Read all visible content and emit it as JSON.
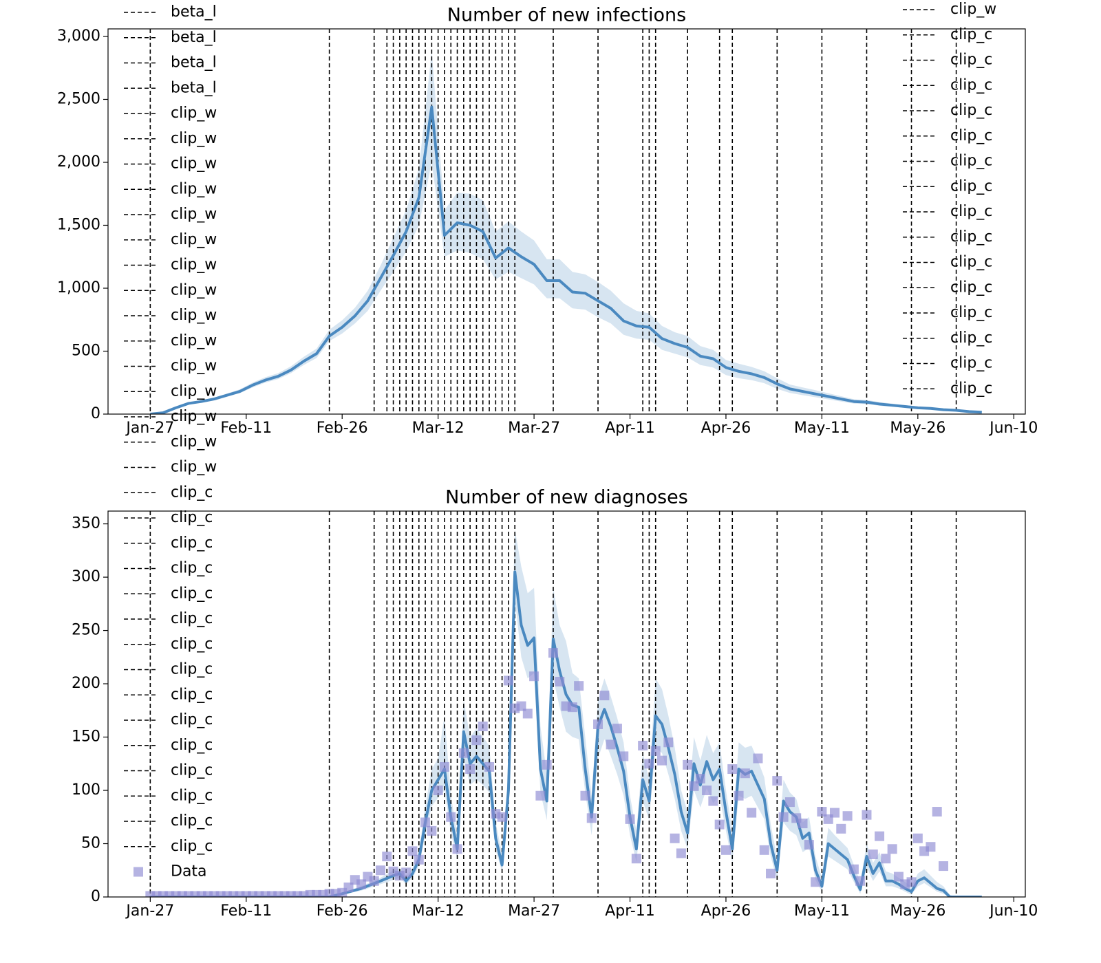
{
  "chart_data": [
    {
      "type": "line",
      "title": "Number of new infections",
      "xlim": [
        -6.6,
        136.8
      ],
      "ylim": [
        0,
        3060
      ],
      "xticks": [
        {
          "value": 0,
          "label": "Jan-27"
        },
        {
          "value": 15,
          "label": "Feb-11"
        },
        {
          "value": 30,
          "label": "Feb-26"
        },
        {
          "value": 45,
          "label": "Mar-12"
        },
        {
          "value": 60,
          "label": "Mar-27"
        },
        {
          "value": 75,
          "label": "Apr-11"
        },
        {
          "value": 90,
          "label": "Apr-26"
        },
        {
          "value": 105,
          "label": "May-11"
        },
        {
          "value": 120,
          "label": "May-26"
        },
        {
          "value": 135,
          "label": "Jun-10"
        }
      ],
      "yticks": [
        0,
        500,
        {
          "value": 1000,
          "label": "1,000"
        },
        {
          "value": 1500,
          "label": "1,500"
        },
        {
          "value": 2000,
          "label": "2,000"
        },
        {
          "value": 2500,
          "label": "2,500"
        },
        {
          "value": 3000,
          "label": "3,000"
        }
      ],
      "grid": false,
      "vlines": [
        0,
        28,
        35,
        37,
        38,
        39,
        40,
        41,
        42,
        43,
        44,
        45,
        46,
        47,
        48,
        49,
        50,
        51,
        52,
        53,
        54,
        55,
        56,
        57,
        63,
        70,
        77,
        78,
        79,
        84,
        89,
        91,
        98,
        105,
        112,
        119,
        126
      ],
      "legend": {
        "loc": "upper right",
        "entries": [
          "clip_w",
          "clip_c",
          "clip_c",
          "clip_c",
          "clip_c",
          "clip_c",
          "clip_c",
          "clip_c",
          "clip_c",
          "clip_c",
          "clip_c",
          "clip_c",
          "clip_c",
          "clip_c",
          "clip_c",
          "clip_c"
        ]
      },
      "series": [
        {
          "color": "#4a89c0",
          "band_color": "#b7d0e6",
          "x": [
            0,
            2,
            4,
            6,
            8,
            10,
            12,
            14,
            16,
            18,
            20,
            22,
            24,
            26,
            28,
            30,
            32,
            34,
            36,
            38,
            40,
            42,
            44,
            46,
            48,
            50,
            52,
            54,
            56,
            58,
            60,
            62,
            64,
            66,
            68,
            70,
            72,
            74,
            76,
            78,
            80,
            82,
            84,
            86,
            88,
            90,
            92,
            94,
            96,
            98,
            100,
            102,
            104,
            106,
            108,
            110,
            112,
            114,
            116,
            118,
            120,
            122,
            124,
            126,
            128,
            130
          ],
          "values": [
            0,
            10,
            50,
            85,
            100,
            120,
            150,
            180,
            230,
            270,
            300,
            350,
            420,
            480,
            620,
            690,
            780,
            900,
            1080,
            1260,
            1450,
            1720,
            2440,
            1420,
            1520,
            1500,
            1450,
            1240,
            1320,
            1250,
            1190,
            1060,
            1060,
            970,
            960,
            900,
            840,
            740,
            700,
            690,
            600,
            560,
            530,
            460,
            440,
            370,
            340,
            320,
            290,
            240,
            200,
            180,
            160,
            140,
            120,
            100,
            95,
            80,
            70,
            60,
            50,
            45,
            35,
            30,
            20,
            15
          ],
          "lower": [
            0,
            8,
            45,
            78,
            92,
            110,
            138,
            166,
            212,
            250,
            278,
            325,
            390,
            445,
            580,
            640,
            720,
            820,
            980,
            1130,
            1290,
            1500,
            2000,
            1250,
            1300,
            1280,
            1230,
            1070,
            1130,
            1080,
            1030,
            920,
            920,
            840,
            830,
            770,
            720,
            630,
            600,
            590,
            510,
            480,
            450,
            390,
            370,
            310,
            285,
            270,
            245,
            200,
            168,
            150,
            134,
            117,
            100,
            83,
            79,
            66,
            58,
            50,
            41,
            37,
            29,
            24,
            16,
            12
          ],
          "upper": [
            0,
            12,
            56,
            93,
            110,
            132,
            163,
            196,
            250,
            293,
            325,
            380,
            455,
            520,
            670,
            745,
            845,
            980,
            1180,
            1400,
            1620,
            1950,
            2880,
            1620,
            1760,
            1750,
            1700,
            1450,
            1530,
            1450,
            1380,
            1230,
            1230,
            1130,
            1110,
            1050,
            980,
            880,
            820,
            800,
            700,
            650,
            620,
            540,
            510,
            430,
            400,
            375,
            340,
            285,
            235,
            212,
            190,
            165,
            142,
            118,
            112,
            95,
            83,
            71,
            60,
            54,
            42,
            36,
            24,
            18
          ]
        }
      ]
    },
    {
      "type": "line",
      "title": "Number of new diagnoses",
      "xlim": [
        -6.6,
        136.8
      ],
      "ylim": [
        0,
        362
      ],
      "xticks": [
        {
          "value": 0,
          "label": "Jan-27"
        },
        {
          "value": 15,
          "label": "Feb-11"
        },
        {
          "value": 30,
          "label": "Feb-26"
        },
        {
          "value": 45,
          "label": "Mar-12"
        },
        {
          "value": 60,
          "label": "Mar-27"
        },
        {
          "value": 75,
          "label": "Apr-11"
        },
        {
          "value": 90,
          "label": "Apr-26"
        },
        {
          "value": 105,
          "label": "May-11"
        },
        {
          "value": 120,
          "label": "May-26"
        },
        {
          "value": 135,
          "label": "Jun-10"
        }
      ],
      "yticks": [
        0,
        50,
        100,
        150,
        200,
        250,
        300,
        350
      ],
      "grid": false,
      "vlines": [
        0,
        28,
        35,
        37,
        38,
        39,
        40,
        41,
        42,
        43,
        44,
        45,
        46,
        47,
        48,
        49,
        50,
        51,
        52,
        53,
        54,
        55,
        56,
        57,
        63,
        70,
        77,
        78,
        79,
        84,
        89,
        91,
        98,
        105,
        112,
        119,
        126
      ],
      "legend": {
        "loc": "upper left",
        "entries": [
          "beta_l",
          "beta_l",
          "beta_l",
          "beta_l",
          "clip_w",
          "clip_w",
          "clip_w",
          "clip_w",
          "clip_w",
          "clip_w",
          "clip_w",
          "clip_w",
          "clip_w",
          "clip_w",
          "clip_w",
          "clip_w",
          "clip_w",
          "clip_w",
          "clip_w",
          "clip_c",
          "clip_c",
          "clip_c",
          "clip_c",
          "clip_c",
          "clip_c",
          "clip_c",
          "clip_c",
          "clip_c",
          "clip_c",
          "clip_c",
          "clip_c",
          "clip_c",
          "clip_c",
          "clip_c"
        ]
      },
      "series": [
        {
          "color": "#4a89c0",
          "band_color": "#b7d0e6",
          "x": [
            0,
            28,
            30,
            33,
            36,
            38,
            39,
            40,
            41,
            42,
            43,
            44,
            45,
            46,
            47,
            48,
            49,
            50,
            51,
            52,
            53,
            54,
            55,
            56,
            57,
            58,
            59,
            60,
            61,
            62,
            63,
            64,
            65,
            66,
            67,
            68,
            69,
            70,
            71,
            72,
            73,
            74,
            75,
            76,
            77,
            78,
            79,
            80,
            81,
            82,
            83,
            84,
            85,
            86,
            87,
            88,
            89,
            90,
            91,
            92,
            93,
            94,
            95,
            96,
            97,
            98,
            99,
            100,
            101,
            102,
            103,
            104,
            105,
            106,
            107,
            108,
            109,
            110,
            111,
            112,
            113,
            114,
            115,
            116,
            117,
            118,
            119,
            120,
            121,
            122,
            123,
            124,
            125,
            126,
            130
          ],
          "values": [
            0,
            0,
            3,
            8,
            15,
            20,
            22,
            15,
            22,
            35,
            70,
            100,
            110,
            120,
            75,
            45,
            155,
            125,
            132,
            125,
            118,
            55,
            30,
            100,
            305,
            255,
            236,
            243,
            120,
            90,
            242,
            212,
            190,
            180,
            178,
            120,
            75,
            160,
            176,
            160,
            140,
            118,
            75,
            45,
            110,
            90,
            170,
            162,
            140,
            115,
            80,
            60,
            125,
            105,
            127,
            110,
            120,
            80,
            45,
            120,
            115,
            118,
            105,
            92,
            50,
            25,
            90,
            80,
            75,
            55,
            60,
            25,
            10,
            50,
            45,
            40,
            35,
            20,
            7,
            38,
            22,
            32,
            15,
            15,
            12,
            8,
            5,
            15,
            18,
            13,
            8,
            6,
            0,
            0,
            0
          ],
          "lower": [
            0,
            0,
            2,
            6,
            12,
            16,
            18,
            12,
            18,
            29,
            58,
            85,
            93,
            100,
            60,
            36,
            130,
            105,
            110,
            105,
            98,
            44,
            24,
            85,
            280,
            225,
            205,
            210,
            98,
            72,
            205,
            178,
            155,
            150,
            148,
            98,
            58,
            130,
            148,
            132,
            115,
            95,
            58,
            33,
            90,
            72,
            140,
            135,
            115,
            92,
            62,
            45,
            100,
            84,
            102,
            88,
            95,
            62,
            32,
            95,
            92,
            95,
            84,
            73,
            38,
            16,
            70,
            62,
            58,
            42,
            46,
            16,
            5,
            38,
            34,
            30,
            26,
            14,
            3,
            28,
            15,
            24,
            10,
            10,
            8,
            5,
            2,
            10,
            13,
            9,
            5,
            3,
            0,
            0,
            0
          ],
          "upper": [
            0,
            0,
            4,
            10,
            18,
            25,
            27,
            19,
            27,
            43,
            85,
            120,
            130,
            170,
            95,
            58,
            185,
            150,
            158,
            150,
            142,
            70,
            40,
            120,
            345,
            310,
            285,
            290,
            160,
            115,
            290,
            255,
            240,
            210,
            205,
            150,
            95,
            185,
            205,
            188,
            168,
            145,
            95,
            62,
            135,
            110,
            205,
            195,
            170,
            140,
            100,
            80,
            150,
            128,
            152,
            135,
            145,
            100,
            62,
            145,
            140,
            142,
            128,
            112,
            68,
            36,
            110,
            98,
            92,
            70,
            75,
            38,
            18,
            65,
            58,
            52,
            46,
            30,
            14,
            50,
            32,
            42,
            24,
            22,
            18,
            14,
            10,
            22,
            26,
            20,
            14,
            10,
            2,
            0,
            0
          ]
        },
        {
          "name": "Data",
          "type": "scatter",
          "color": "#8d8bd3",
          "x": [
            0,
            1,
            2,
            3,
            4,
            5,
            6,
            7,
            8,
            9,
            10,
            11,
            12,
            13,
            14,
            15,
            16,
            17,
            18,
            19,
            20,
            21,
            22,
            23,
            24,
            25,
            26,
            27,
            28,
            29,
            30,
            31,
            32,
            33,
            34,
            35,
            36,
            37,
            38,
            39,
            40,
            41,
            42,
            43,
            44,
            45,
            46,
            47,
            48,
            49,
            50,
            51,
            52,
            53,
            54,
            55,
            56,
            57,
            58,
            59,
            60,
            61,
            62,
            63,
            64,
            65,
            66,
            67,
            68,
            69,
            70,
            71,
            72,
            73,
            74,
            75,
            76,
            77,
            78,
            79,
            80,
            81,
            82,
            83,
            84,
            85,
            86,
            87,
            88,
            89,
            90,
            91,
            92,
            93,
            94,
            95,
            96,
            97,
            98,
            99,
            100,
            101,
            102,
            103,
            104,
            105,
            106,
            107,
            108,
            109,
            110,
            111,
            112,
            113,
            114,
            115,
            116,
            117,
            118,
            119,
            120,
            121,
            122,
            123,
            124
          ],
          "values": [
            1,
            1,
            1,
            1,
            1,
            1,
            1,
            1,
            1,
            1,
            1,
            1,
            1,
            1,
            1,
            1,
            1,
            1,
            1,
            1,
            1,
            1,
            1,
            1,
            1,
            2,
            2,
            2,
            3,
            3,
            4,
            9,
            16,
            12,
            19,
            15,
            25,
            38,
            24,
            20,
            23,
            43,
            35,
            70,
            62,
            100,
            122,
            75,
            45,
            135,
            120,
            147,
            160,
            122,
            78,
            75,
            203,
            177,
            179,
            172,
            207,
            95,
            124,
            229,
            202,
            179,
            178,
            198,
            95,
            74,
            162,
            189,
            143,
            158,
            132,
            73,
            36,
            142,
            125,
            137,
            128,
            145,
            55,
            41,
            124,
            104,
            111,
            100,
            90,
            68,
            44,
            120,
            95,
            116,
            79,
            130,
            44,
            22,
            109,
            75,
            89,
            74,
            69,
            49,
            14,
            80,
            73,
            79,
            64,
            76,
            26,
            15,
            77,
            40,
            57,
            36,
            45,
            19,
            12,
            14,
            55,
            43,
            47,
            80,
            29
          ]
        }
      ]
    }
  ]
}
